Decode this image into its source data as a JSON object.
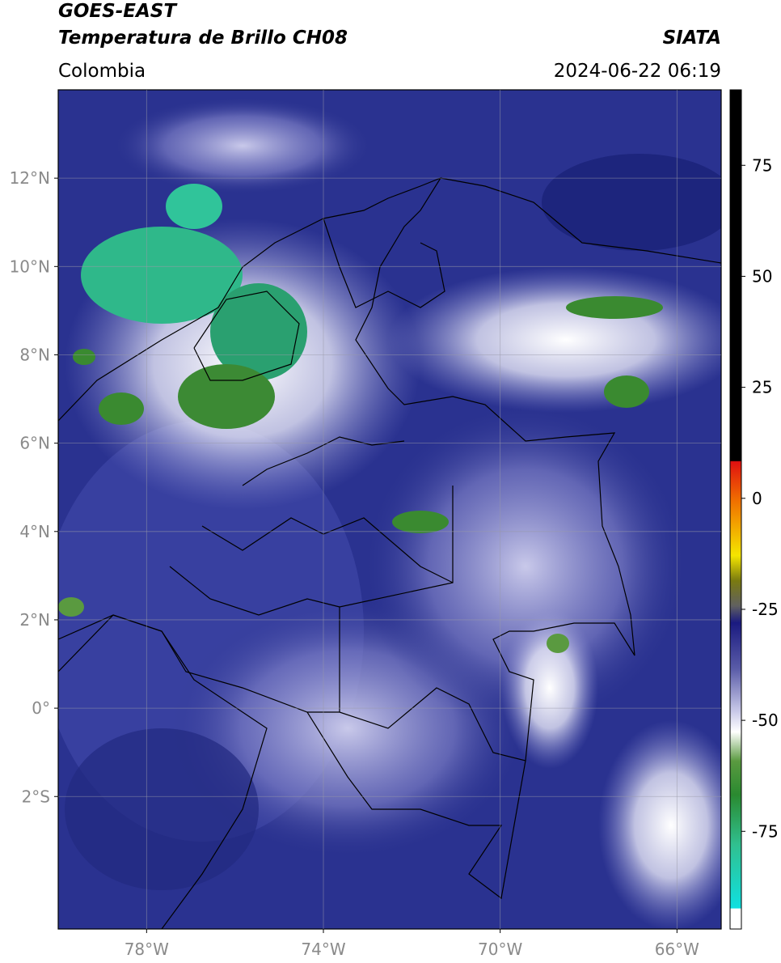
{
  "header": {
    "title_line1": "GOES-EAST",
    "title_line2": "Temperatura de Brillo CH08",
    "region": "Colombia",
    "source": "SIATA",
    "datetime": "2024-06-22 06:19"
  },
  "map": {
    "lonlim": [
      -80,
      -65
    ],
    "latlim": [
      -5,
      14
    ],
    "lon_ticks": [
      {
        "value": -78,
        "label": "78°W"
      },
      {
        "value": -74,
        "label": "74°W"
      },
      {
        "value": -70,
        "label": "70°W"
      },
      {
        "value": -66,
        "label": "66°W"
      }
    ],
    "lat_ticks": [
      {
        "value": 12,
        "label": "12°N"
      },
      {
        "value": 10,
        "label": "10°N"
      },
      {
        "value": 8,
        "label": "8°N"
      },
      {
        "value": 6,
        "label": "6°N"
      },
      {
        "value": 4,
        "label": "4°N"
      },
      {
        "value": 2,
        "label": "2°N"
      },
      {
        "value": 0,
        "label": "0°"
      },
      {
        "value": -2,
        "label": "2°S"
      }
    ]
  },
  "colorbar": {
    "lim": [
      -97,
      92
    ],
    "ticks": [
      75,
      50,
      25,
      0,
      -25,
      -50,
      -75
    ]
  }
}
